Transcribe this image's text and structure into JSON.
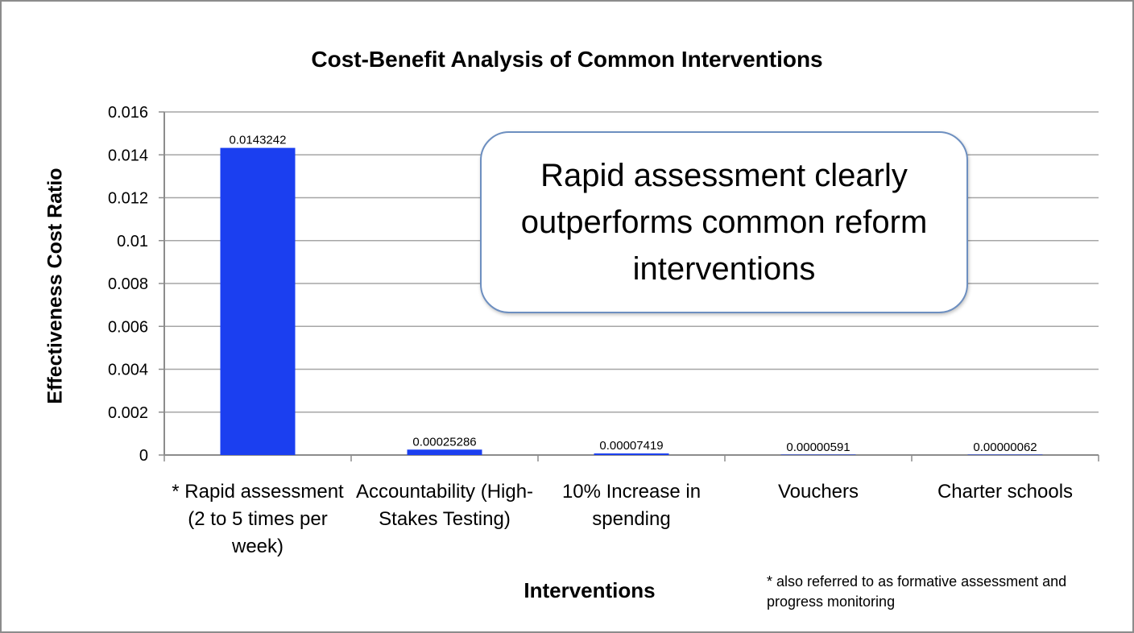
{
  "chart_data": {
    "type": "bar",
    "title": "Cost-Benefit Analysis of Common Interventions",
    "xlabel": "Interventions",
    "ylabel": "Effectiveness Cost Ratio",
    "ylim": [
      0,
      0.016
    ],
    "yticks": [
      "0",
      "0.002",
      "0.004",
      "0.006",
      "0.008",
      "0.01",
      "0.012",
      "0.014",
      "0.016"
    ],
    "categories": [
      "* Rapid assessment (2 to 5 times per week)",
      "Accountability (High-Stakes Testing)",
      "10% Increase in spending",
      "Vouchers",
      "Charter schools"
    ],
    "values": [
      0.0143242,
      0.00025286,
      7.419e-05,
      5.91e-06,
      6.2e-07
    ],
    "data_labels": [
      "0.0143242",
      "0.00025286",
      "0.00007419",
      "0.00000591",
      "0.00000062"
    ],
    "grid": true,
    "legend": "none",
    "bar_color": "#1b3ff0",
    "annotation": "Rapid assessment clearly outperforms common reform interventions",
    "footnote": "* also referred to as formative assessment and progress monitoring"
  }
}
